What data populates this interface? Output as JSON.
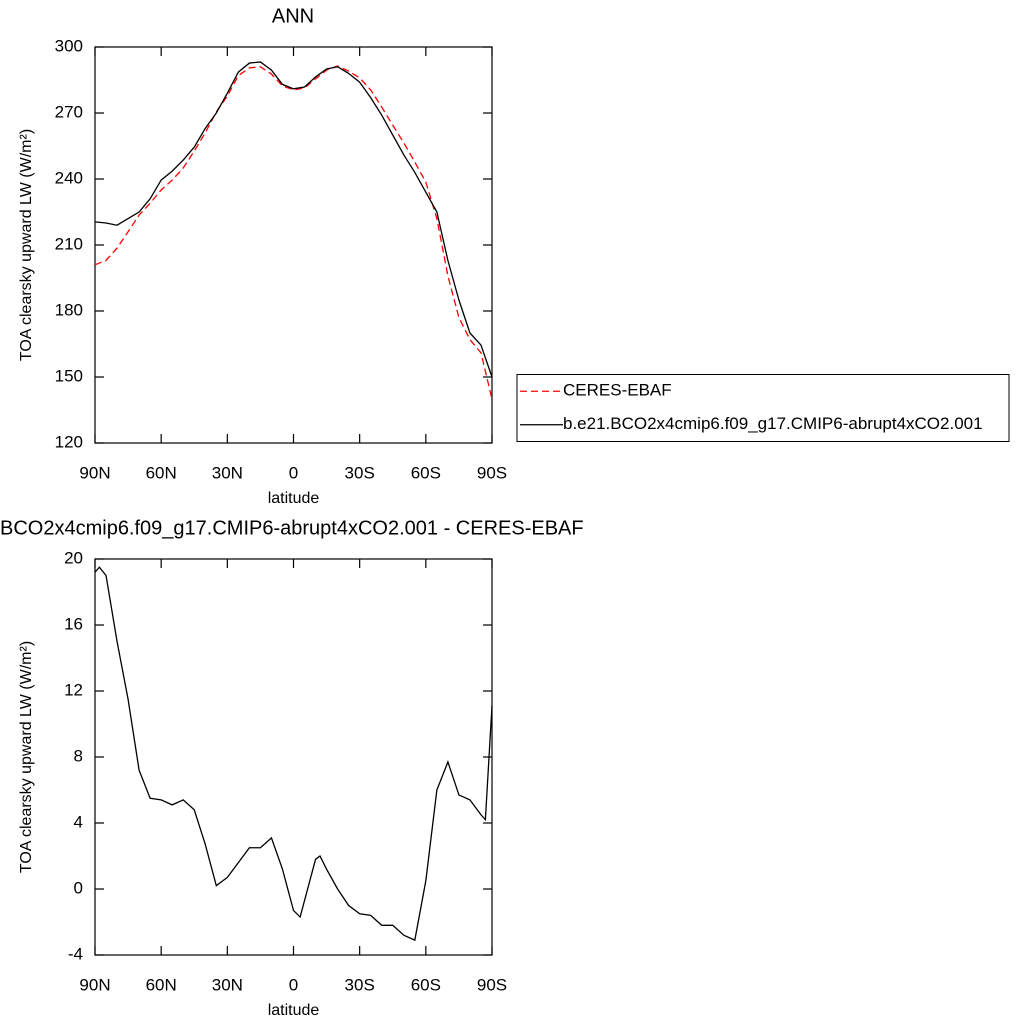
{
  "chart_data": [
    {
      "type": "line",
      "title": "ANN",
      "x_label": "latitude",
      "y_label": "TOA clearsky upward LW (W/m²)",
      "x": [
        90,
        85,
        80,
        75,
        70,
        65,
        60,
        55,
        50,
        45,
        40,
        35,
        30,
        25,
        20,
        15,
        10,
        5,
        0,
        -5,
        -10,
        -15,
        -20,
        -25,
        -30,
        -35,
        -40,
        -45,
        -50,
        -55,
        -60,
        -65,
        -70,
        -75,
        -80,
        -85,
        -90
      ],
      "series": [
        {
          "name": "CERES-EBAF",
          "color": "#ff0000",
          "line_style": "dashed",
          "values": [
            201,
            203,
            208.6,
            216,
            223.6,
            229,
            235,
            239.5,
            245,
            252.7,
            261,
            270.5,
            277.7,
            287,
            290.5,
            291,
            287.7,
            282.3,
            280.5,
            281.4,
            285.5,
            289.5,
            291.4,
            289,
            286,
            280.5,
            272.7,
            264.5,
            256.4,
            247.7,
            238.6,
            222,
            196,
            177,
            167,
            161,
            140
          ]
        },
        {
          "name": "b.e21.BCO2x4cmip6.f09_g17.CMIP6-abrupt4xCO2.001",
          "color": "#000000",
          "line_style": "solid",
          "values": [
            220.5,
            220,
            219,
            222,
            225,
            231,
            239.5,
            243.6,
            248.6,
            254.5,
            263,
            270,
            279,
            288.6,
            292.7,
            293.2,
            289.5,
            283,
            281,
            281.8,
            286.4,
            290,
            291,
            288,
            284,
            277,
            269,
            260,
            251,
            243,
            234,
            225,
            203,
            185,
            170,
            164.5,
            150
          ]
        }
      ],
      "xlim": [
        90,
        -90
      ],
      "xticks": [
        {
          "value": 90,
          "label": "90N"
        },
        {
          "value": 60,
          "label": "60N"
        },
        {
          "value": 30,
          "label": "30N"
        },
        0,
        {
          "value": -30,
          "label": "30S"
        },
        {
          "value": -60,
          "label": "60S"
        },
        {
          "value": -90,
          "label": "90S"
        }
      ],
      "ylim": [
        120,
        300
      ],
      "yticks": [
        120,
        150,
        180,
        210,
        240,
        270,
        300
      ],
      "legend": "right"
    },
    {
      "type": "line",
      "title": "BCO2x4cmip6.f09_g17.CMIP6-abrupt4xCO2.001 - CERES-EBAF",
      "x_label": "latitude",
      "y_label": "TOA clearsky upward LW (W/m²)",
      "x": [
        90,
        88,
        85,
        80,
        75,
        70,
        65,
        60,
        55,
        50,
        45,
        40,
        35,
        30,
        25,
        20,
        15,
        10,
        5,
        0,
        -3,
        -5,
        -10,
        -12,
        -15,
        -20,
        -25,
        -30,
        -35,
        -40,
        -45,
        -50,
        -55,
        -60,
        -65,
        -70,
        -75,
        -80,
        -85,
        -87,
        -90
      ],
      "values": [
        19.2,
        19.5,
        19,
        15,
        11.5,
        7.2,
        5.5,
        5.4,
        5.1,
        5.4,
        4.8,
        2.7,
        0.2,
        0.7,
        1.6,
        2.5,
        2.5,
        3.1,
        1.2,
        -1.3,
        -1.7,
        -0.7,
        1.8,
        2,
        1.2,
        0,
        -1,
        -1.5,
        -1.6,
        -2.2,
        -2.2,
        -2.8,
        -3.1,
        0.5,
        6,
        7.7,
        5.7,
        5.4,
        4.5,
        4.2,
        11.1
      ],
      "color": "#000000",
      "xlim": [
        90,
        -90
      ],
      "xticks": [
        {
          "value": 90,
          "label": "90N"
        },
        {
          "value": 60,
          "label": "60N"
        },
        {
          "value": 30,
          "label": "30N"
        },
        0,
        {
          "value": -30,
          "label": "30S"
        },
        {
          "value": -60,
          "label": "60S"
        },
        {
          "value": -90,
          "label": "90S"
        }
      ],
      "ylim": [
        -4,
        20
      ],
      "yticks": [
        -4,
        0,
        4,
        8,
        12,
        16,
        20
      ]
    }
  ]
}
